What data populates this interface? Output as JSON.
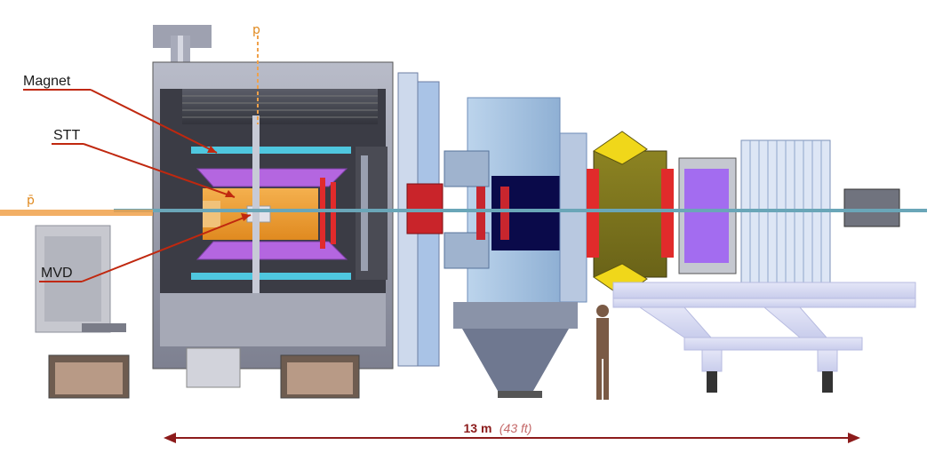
{
  "labels": {
    "magnet": "Magnet",
    "stt": "STT",
    "mvd": "MVD"
  },
  "beams": {
    "proton": "p",
    "antiproton": "p̄"
  },
  "scale": {
    "value": "13 m",
    "alt": "(43 ft)"
  },
  "colors": {
    "annotation": "#c0280f",
    "beam": "#f0a14a",
    "scale_arrow": "#8c1b1b"
  }
}
